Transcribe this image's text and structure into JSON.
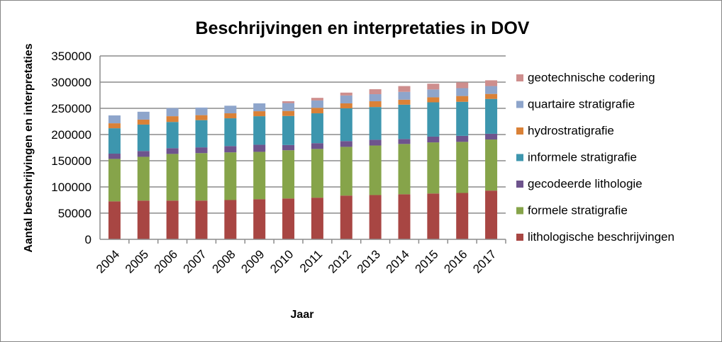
{
  "chart_data": {
    "type": "bar",
    "stacked": true,
    "title": "Beschrijvingen en interpretaties in DOV",
    "xlabel": "Jaar",
    "ylabel": "Aantal beschrijvingen en interpretaties",
    "ylim": [
      0,
      350000
    ],
    "yticks": [
      0,
      50000,
      100000,
      150000,
      200000,
      250000,
      300000,
      350000
    ],
    "grid": true,
    "legend": "right",
    "categories": [
      "2004",
      "2005",
      "2006",
      "2007",
      "2008",
      "2009",
      "2010",
      "2011",
      "2012",
      "2013",
      "2014",
      "2015",
      "2016",
      "2017"
    ],
    "series": [
      {
        "name": "lithologische beschrijvingen",
        "color": "#A84643",
        "values": [
          72500,
          74000,
          74000,
          74000,
          75000,
          76500,
          78000,
          79500,
          83500,
          84500,
          86000,
          87500,
          88500,
          93000
        ]
      },
      {
        "name": "formele stratigrafie",
        "color": "#86A44A",
        "values": [
          81000,
          83500,
          89000,
          90500,
          91000,
          90500,
          92000,
          93000,
          93000,
          94500,
          96000,
          97500,
          97500,
          97500
        ]
      },
      {
        "name": "gecodeerde lithologie",
        "color": "#6E548D",
        "values": [
          10000,
          11000,
          11000,
          11000,
          12000,
          13500,
          10000,
          11000,
          11000,
          11000,
          9500,
          11000,
          11500,
          11000
        ]
      },
      {
        "name": "informele stratigrafie",
        "color": "#3D96AE",
        "values": [
          48500,
          50500,
          50000,
          52000,
          53000,
          54500,
          55500,
          57000,
          62500,
          62500,
          65500,
          65500,
          65000,
          66500
        ]
      },
      {
        "name": "hydrostratigrafie",
        "color": "#DA8137",
        "values": [
          9500,
          9500,
          11000,
          9500,
          9500,
          9500,
          9500,
          10500,
          9500,
          11000,
          9500,
          9500,
          11000,
          9500
        ]
      },
      {
        "name": "quartaire stratigrafie",
        "color": "#8EA5CB",
        "values": [
          15000,
          15000,
          15500,
          14500,
          14500,
          15000,
          15000,
          14000,
          15000,
          13500,
          15000,
          15000,
          15000,
          15000
        ]
      },
      {
        "name": "geotechnische codering",
        "color": "#CE8E8D",
        "values": [
          0,
          0,
          0,
          0,
          0,
          0,
          3500,
          5000,
          5500,
          9500,
          11000,
          11000,
          11000,
          11000
        ]
      }
    ]
  }
}
